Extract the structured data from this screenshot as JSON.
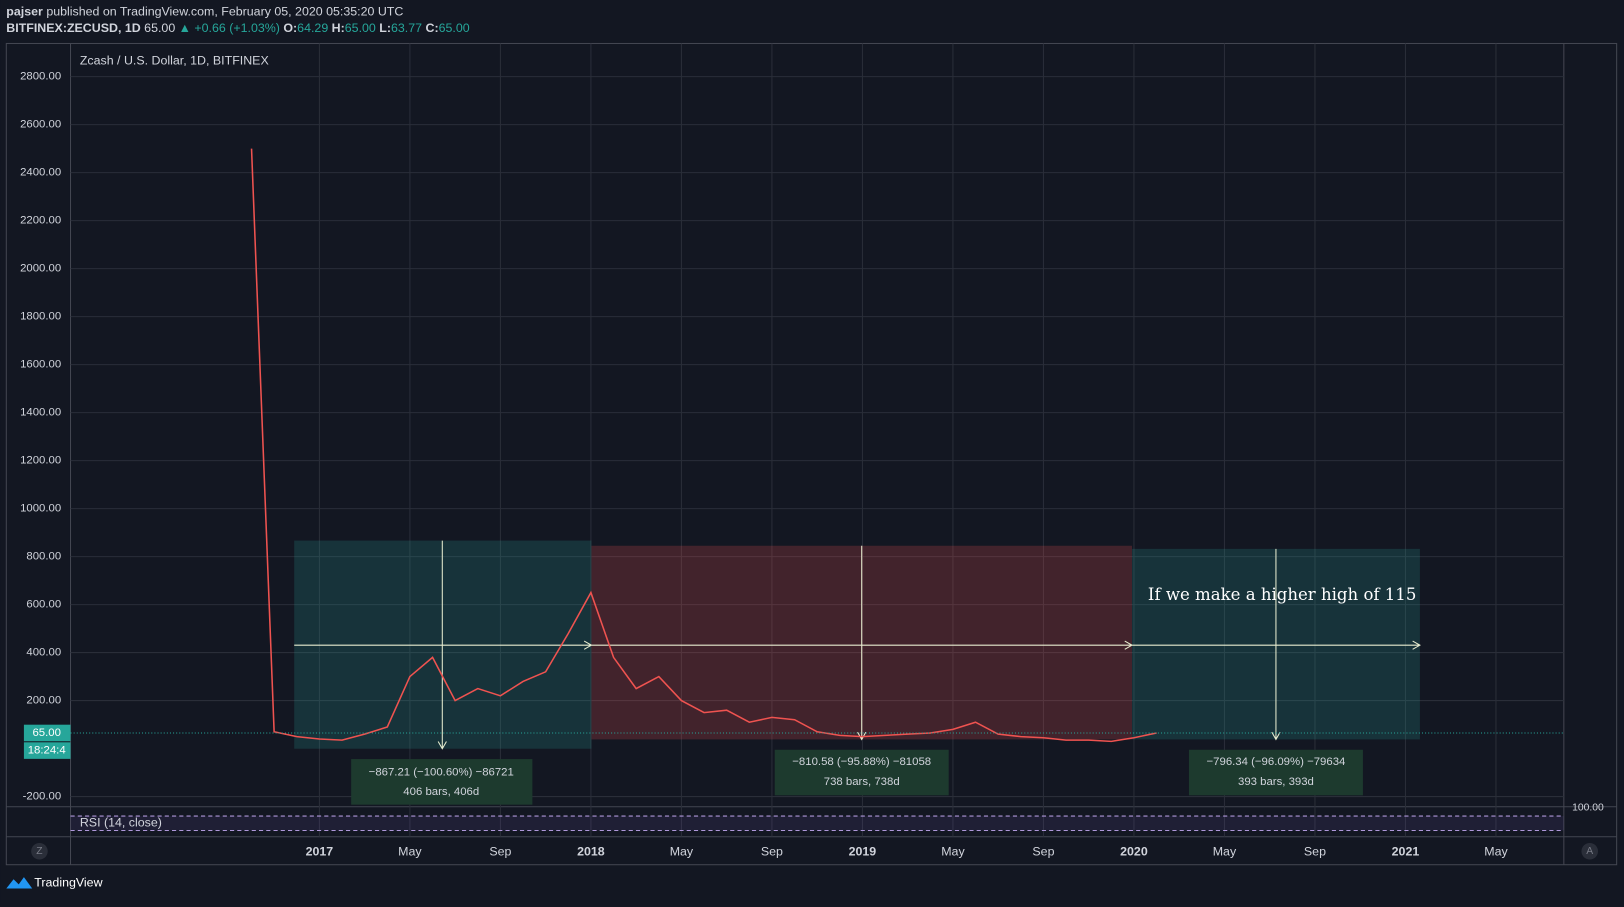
{
  "header": {
    "author": "pajser",
    "published": "published on TradingView.com, February 05, 2020 05:35:20 UTC",
    "symbol": "BITFINEX:ZECUSD, 1D",
    "last": "65.00",
    "change": "▲ +0.66 (+1.03%)",
    "open_label": "O:",
    "open": "64.29",
    "high_label": "H:",
    "high": "65.00",
    "low_label": "L:",
    "low": "63.77",
    "close_label": "C:",
    "close": "65.00"
  },
  "chart_data": {
    "type": "line",
    "title": "Zcash / U.S. Dollar, 1D, BITFINEX",
    "x": [
      "2016-10",
      "2016-11",
      "2016-12",
      "2017-01",
      "2017-02",
      "2017-03",
      "2017-04",
      "2017-05",
      "2017-06",
      "2017-07",
      "2017-08",
      "2017-09",
      "2017-10",
      "2017-11",
      "2017-12",
      "2018-01",
      "2018-02",
      "2018-03",
      "2018-04",
      "2018-05",
      "2018-06",
      "2018-07",
      "2018-08",
      "2018-09",
      "2018-10",
      "2018-11",
      "2018-12",
      "2019-01",
      "2019-02",
      "2019-03",
      "2019-04",
      "2019-05",
      "2019-06",
      "2019-07",
      "2019-08",
      "2019-09",
      "2019-10",
      "2019-11",
      "2019-12",
      "2020-01",
      "2020-02"
    ],
    "series": [
      {
        "name": "ZECUSD",
        "color": "#ef5350",
        "values": [
          2500,
          70,
          50,
          40,
          35,
          60,
          90,
          300,
          380,
          200,
          250,
          220,
          280,
          320,
          480,
          650,
          380,
          250,
          300,
          200,
          150,
          160,
          110,
          130,
          120,
          70,
          55,
          50,
          55,
          60,
          65,
          80,
          110,
          60,
          50,
          45,
          35,
          35,
          30,
          45,
          65
        ]
      }
    ],
    "xlim": [
      "2016-02",
      "2021-08"
    ],
    "xticks": [
      {
        "value": "2017-01",
        "label": "2017"
      },
      {
        "value": "2017-05",
        "label": "May"
      },
      {
        "value": "2017-09",
        "label": "Sep"
      },
      {
        "value": "2018-01",
        "label": "2018"
      },
      {
        "value": "2018-05",
        "label": "May"
      },
      {
        "value": "2018-09",
        "label": "Sep"
      },
      {
        "value": "2019-01",
        "label": "2019"
      },
      {
        "value": "2019-05",
        "label": "May"
      },
      {
        "value": "2019-09",
        "label": "Sep"
      },
      {
        "value": "2020-01",
        "label": "2020"
      },
      {
        "value": "2020-05",
        "label": "May"
      },
      {
        "value": "2020-09",
        "label": "Sep"
      },
      {
        "value": "2021-01",
        "label": "2021"
      },
      {
        "value": "2021-05",
        "label": "May"
      }
    ],
    "ylim": [
      -238,
      2938
    ],
    "yticks": [
      {
        "value": -200,
        "label": "-200.00"
      },
      {
        "value": 200,
        "label": "200.00"
      },
      {
        "value": 400,
        "label": "400.00"
      },
      {
        "value": 600,
        "label": "600.00"
      },
      {
        "value": 800,
        "label": "800.00"
      },
      {
        "value": 1000,
        "label": "1000.00"
      },
      {
        "value": 1200,
        "label": "1200.00"
      },
      {
        "value": 1400,
        "label": "1400.00"
      },
      {
        "value": 1600,
        "label": "1600.00"
      },
      {
        "value": 1800,
        "label": "1800.00"
      },
      {
        "value": 2000,
        "label": "2000.00"
      },
      {
        "value": 2200,
        "label": "2200.00"
      },
      {
        "value": 2400,
        "label": "2400.00"
      },
      {
        "value": 2600,
        "label": "2600.00"
      },
      {
        "value": 2800,
        "label": "2800.00"
      }
    ],
    "grid": true,
    "price_marker": {
      "value": 65,
      "label": "65.00",
      "countdown": "18:24:4"
    },
    "annotations": [
      "If we make a higher high of 115",
      "−867.21 (−100.60%) −86721",
      "406 bars, 406d",
      "−810.58 (−95.88%) −81058",
      "738 bars, 738d",
      "−796.34 (−96.09%) −79634",
      "393 bars, 393d"
    ],
    "indicator": "RSI (14, close)",
    "indicator_level": "100.00"
  },
  "footer": {
    "brand": "TradingView",
    "left_button": "Z",
    "right_button": "A"
  }
}
